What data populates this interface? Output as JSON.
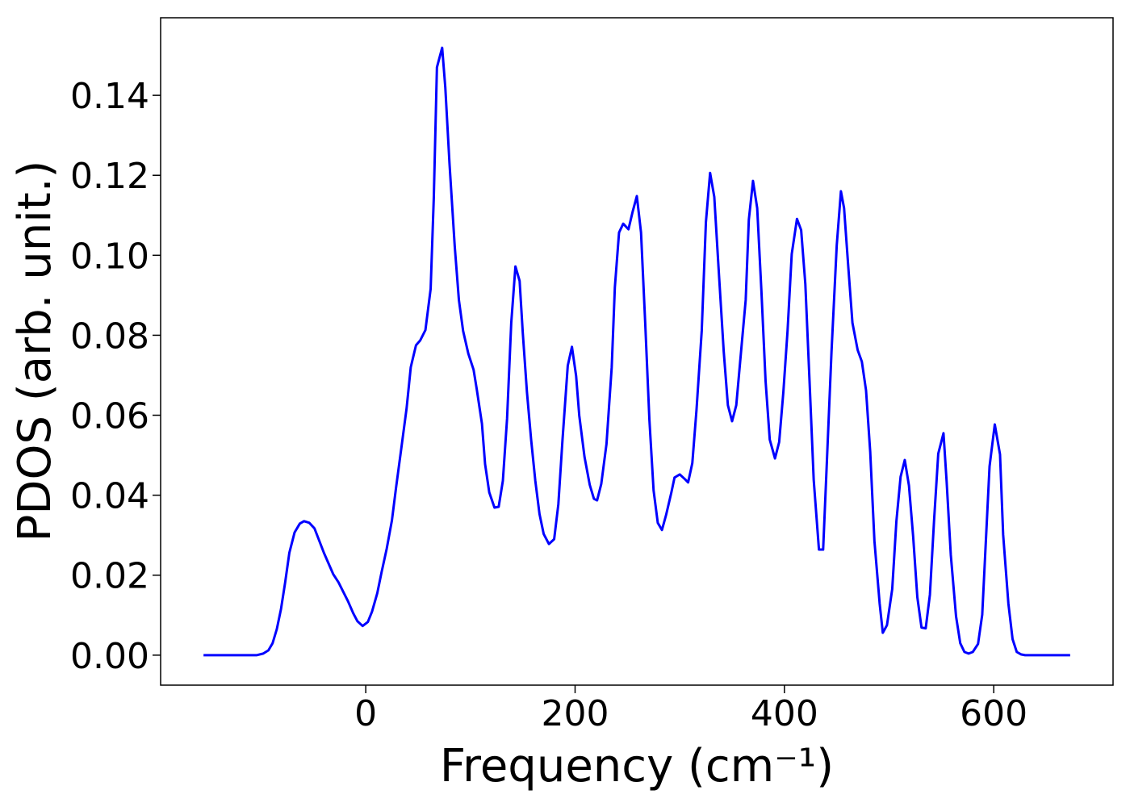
{
  "chart_data": {
    "type": "line",
    "xlabel": "Frequency (cm⁻¹)",
    "ylabel": "PDOS (arb. unit.)",
    "xlim": [
      -196,
      714
    ],
    "ylim": [
      -0.0075,
      0.1594
    ],
    "xticks": [
      0,
      200,
      400,
      600
    ],
    "yticks": [
      {
        "value": 0,
        "label": "0.00"
      },
      0.02,
      0.04,
      0.06,
      0.08,
      {
        "value": 0.1,
        "label": "0.10"
      },
      0.12,
      0.14
    ],
    "series": [
      {
        "color": "#0000ff",
        "x": [
          -155,
          -104,
          -98,
          -93,
          -89,
          -85,
          -81,
          -77,
          -73,
          -68,
          -63,
          -59,
          -54,
          -49,
          -45,
          -40,
          -35,
          -31,
          -26,
          -22,
          -17,
          -12,
          -8,
          -3,
          2,
          6,
          11,
          15,
          20,
          25,
          29,
          34,
          39,
          43,
          48,
          52,
          57,
          62,
          65,
          68,
          73,
          76,
          80,
          85,
          89,
          93,
          98,
          103,
          106,
          111,
          114,
          118,
          123,
          127,
          131,
          135,
          139,
          143,
          147,
          150,
          154,
          158,
          162,
          166,
          170,
          175,
          180,
          184,
          188,
          193,
          197,
          201,
          204,
          209,
          214,
          218,
          221,
          225,
          230,
          235,
          238,
          242,
          246,
          251,
          255,
          259,
          263,
          267,
          271,
          275,
          279,
          283,
          287,
          292,
          295,
          300,
          305,
          308,
          312,
          316,
          321,
          325,
          329,
          333,
          337,
          342,
          346,
          350,
          354,
          358,
          363,
          366,
          370,
          374,
          378,
          382,
          386,
          391,
          395,
          399,
          403,
          407,
          412,
          416,
          420,
          424,
          428,
          433,
          437,
          440,
          445,
          450,
          454,
          457,
          461,
          465,
          470,
          474,
          478,
          482,
          486,
          491,
          494,
          498,
          503,
          507,
          511,
          515,
          519,
          523,
          527,
          531,
          535,
          539,
          543,
          547,
          552,
          555,
          559,
          564,
          568,
          572,
          576,
          580,
          585,
          589,
          592,
          596,
          601,
          606,
          609,
          614,
          618,
          622,
          626,
          630,
          673
        ],
        "values": [
          0,
          0,
          0.0004,
          0.0012,
          0.003,
          0.0065,
          0.0115,
          0.0182,
          0.0256,
          0.0307,
          0.0329,
          0.0335,
          0.0331,
          0.0317,
          0.029,
          0.0256,
          0.0226,
          0.0202,
          0.0182,
          0.0161,
          0.0135,
          0.0105,
          0.0085,
          0.0073,
          0.0083,
          0.0109,
          0.0155,
          0.0206,
          0.0266,
          0.0337,
          0.042,
          0.0518,
          0.0617,
          0.072,
          0.0775,
          0.0787,
          0.0813,
          0.0916,
          0.1144,
          0.147,
          0.1519,
          0.142,
          0.123,
          0.1023,
          0.0888,
          0.0811,
          0.0754,
          0.0714,
          0.0666,
          0.0579,
          0.0478,
          0.0407,
          0.0369,
          0.0371,
          0.0436,
          0.0591,
          0.0831,
          0.0972,
          0.0936,
          0.0807,
          0.0658,
          0.0539,
          0.0436,
          0.0353,
          0.0303,
          0.0278,
          0.029,
          0.0377,
          0.0539,
          0.0724,
          0.0771,
          0.0698,
          0.0599,
          0.0496,
          0.0426,
          0.0391,
          0.0387,
          0.0428,
          0.0528,
          0.072,
          0.092,
          0.1057,
          0.1079,
          0.1065,
          0.1109,
          0.1148,
          0.1057,
          0.0831,
          0.0589,
          0.0412,
          0.0331,
          0.0313,
          0.0351,
          0.0407,
          0.0444,
          0.0452,
          0.044,
          0.0432,
          0.048,
          0.0613,
          0.0811,
          0.1083,
          0.1206,
          0.1146,
          0.0972,
          0.076,
          0.0625,
          0.0585,
          0.0625,
          0.0742,
          0.0888,
          0.1089,
          0.1186,
          0.1118,
          0.0912,
          0.0686,
          0.0539,
          0.0492,
          0.0533,
          0.0658,
          0.0811,
          0.1003,
          0.1091,
          0.1063,
          0.0928,
          0.0686,
          0.0438,
          0.0264,
          0.0264,
          0.0448,
          0.0759,
          0.1025,
          0.116,
          0.1118,
          0.0972,
          0.0831,
          0.0763,
          0.0734,
          0.0662,
          0.0508,
          0.0286,
          0.0129,
          0.0056,
          0.0075,
          0.0165,
          0.0335,
          0.0446,
          0.0488,
          0.0424,
          0.0297,
          0.0145,
          0.0069,
          0.0067,
          0.0151,
          0.0337,
          0.0504,
          0.0555,
          0.0434,
          0.025,
          0.0097,
          0.003,
          0.0008,
          0.0004,
          0.0008,
          0.0028,
          0.0101,
          0.026,
          0.0472,
          0.0577,
          0.0502,
          0.0301,
          0.0129,
          0.004,
          0.0008,
          0.0002,
          0,
          0
        ]
      }
    ]
  }
}
